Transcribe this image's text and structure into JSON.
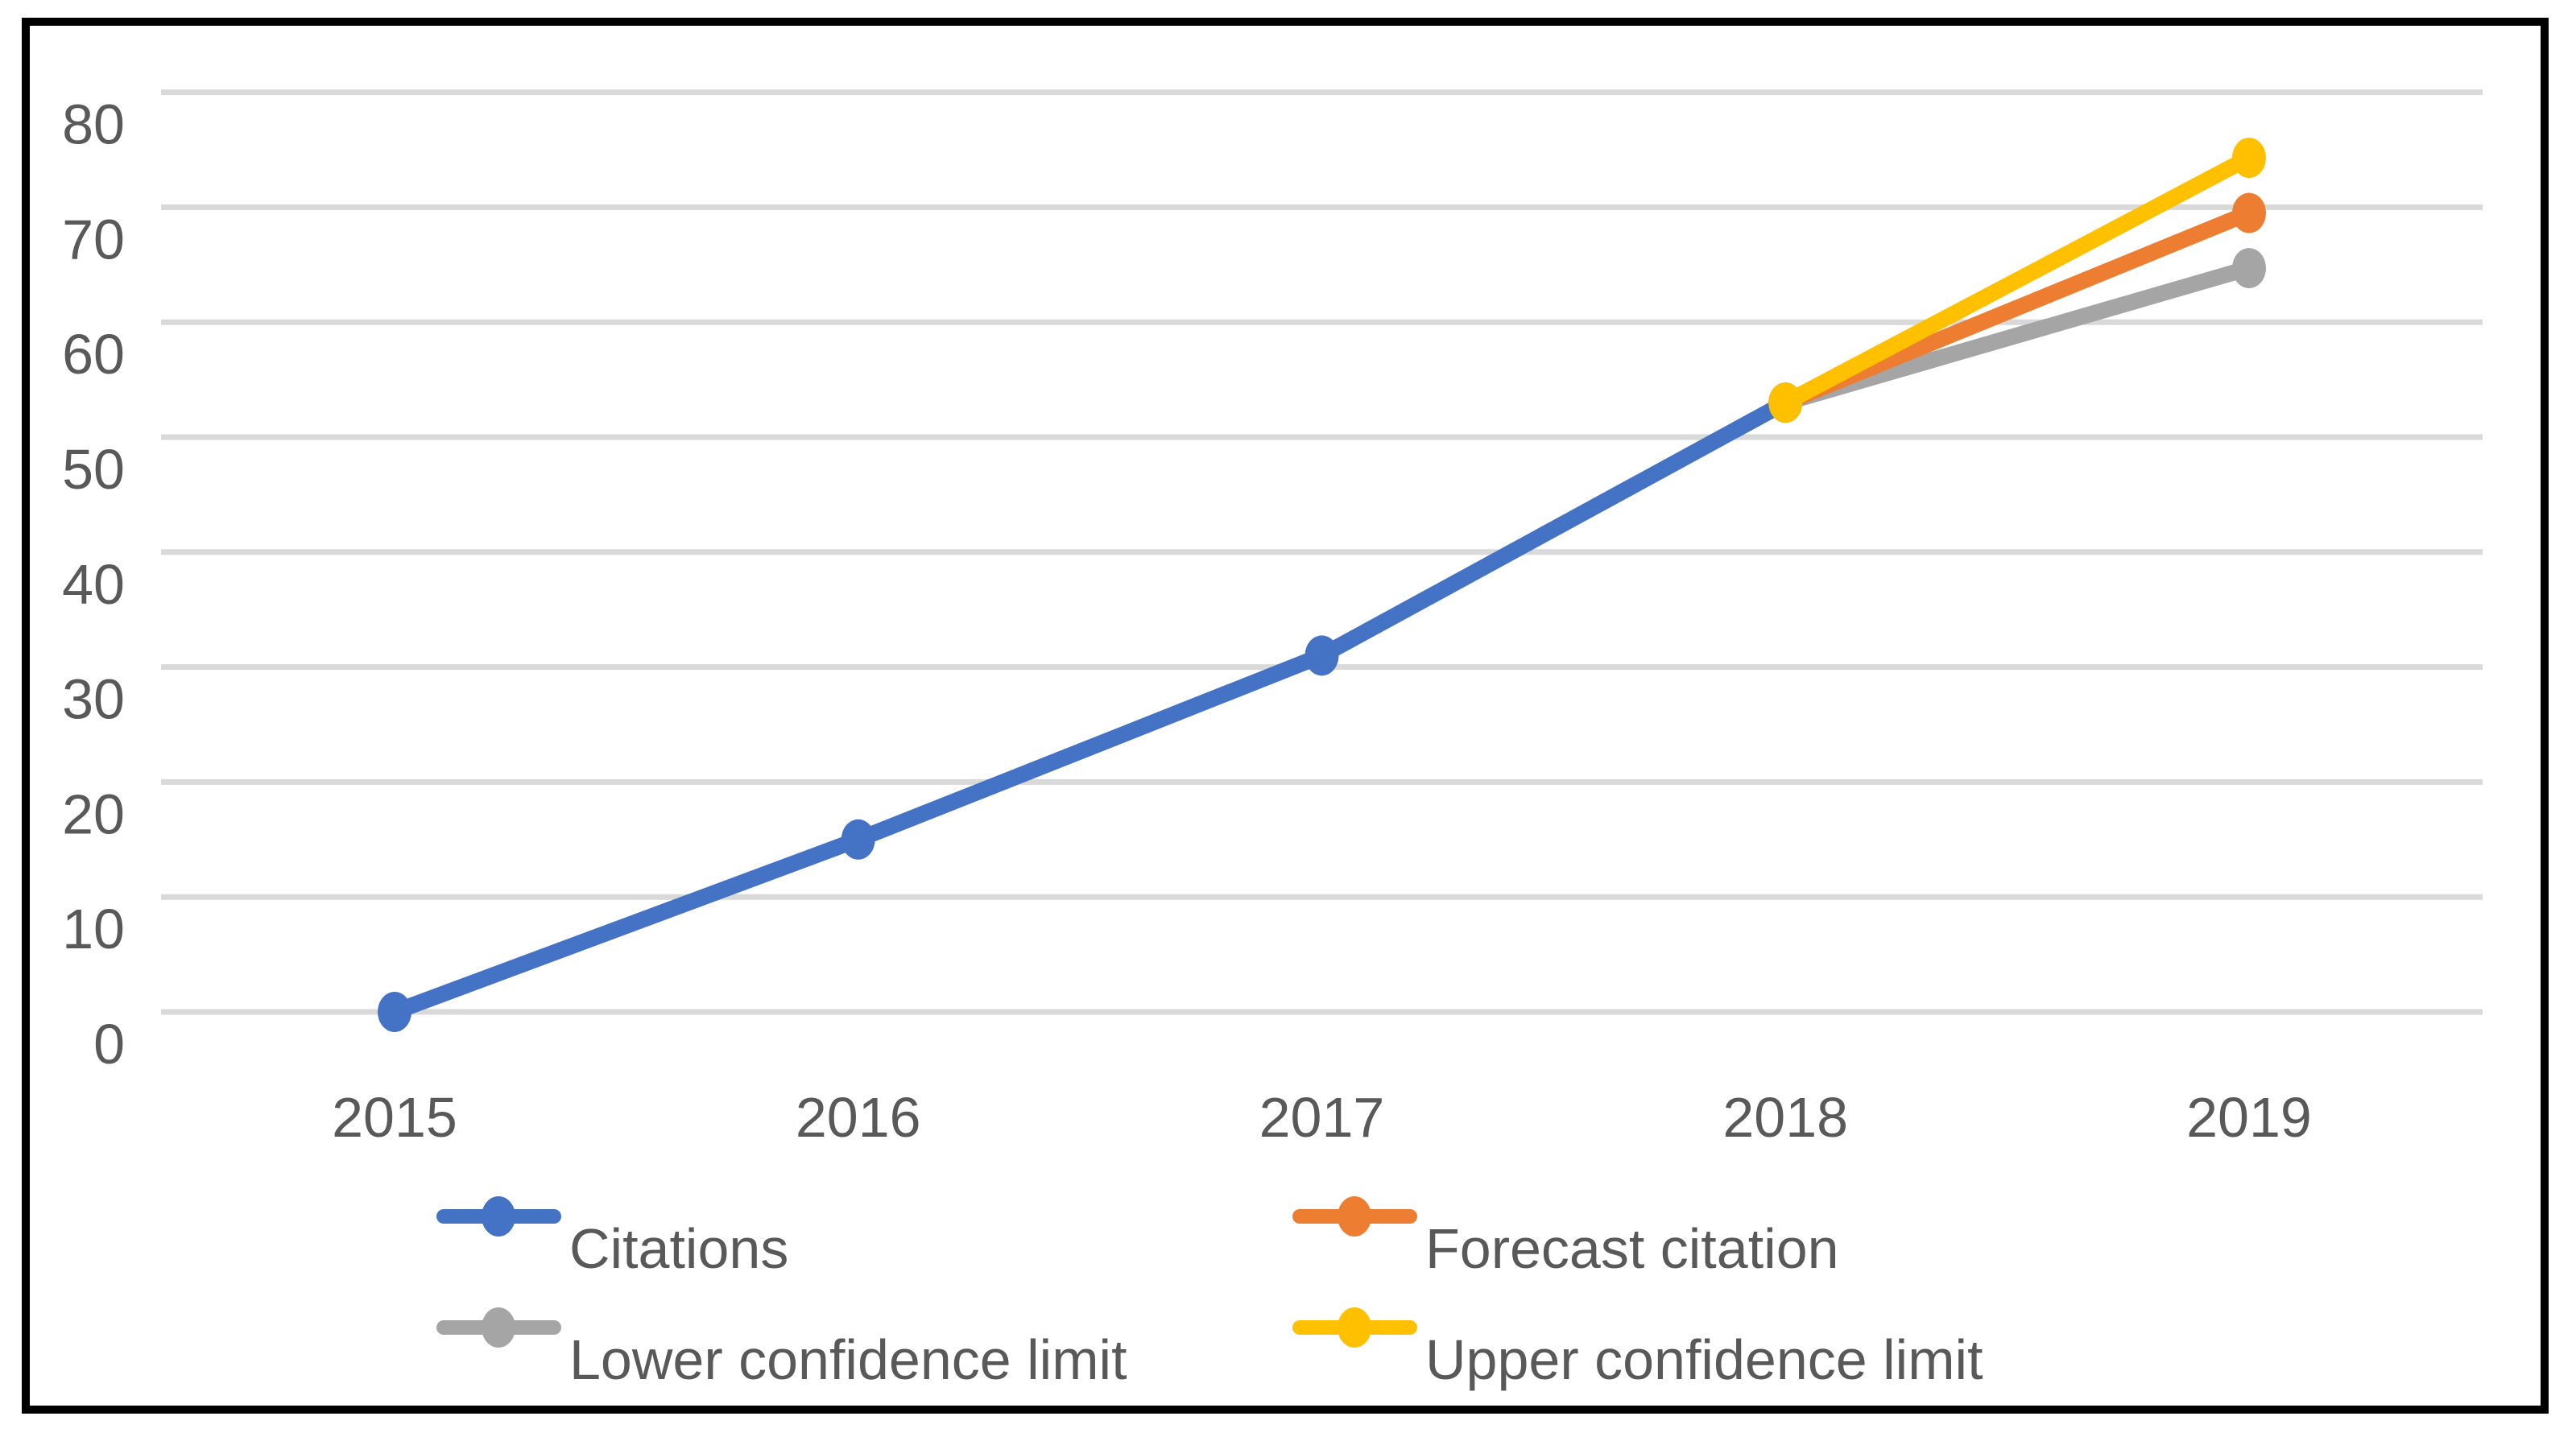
{
  "figure": {
    "background_color": "#ffffff",
    "frame_color": "#000000",
    "gridline_color": "#D9D9D9",
    "axis_text_color": "#595959"
  },
  "chart_data": {
    "type": "line",
    "title": "",
    "xlabel": "",
    "ylabel": "",
    "x_categories": [
      "2015",
      "2016",
      "2017",
      "2018",
      "2019"
    ],
    "y_ticks": [
      "0",
      "10",
      "20",
      "30",
      "40",
      "50",
      "60",
      "70",
      "80"
    ],
    "ylim": [
      0,
      80
    ],
    "grid": "horizontal",
    "legend_position": "bottom",
    "series": [
      {
        "name": "Citations",
        "color": "#4472C4",
        "x": [
          2015,
          2016,
          2017,
          2018
        ],
        "values": [
          0,
          15,
          31,
          53
        ]
      },
      {
        "name": "Forecast citation",
        "color": "#ED7D31",
        "x": [
          2018,
          2019
        ],
        "values": [
          53,
          69.5
        ]
      },
      {
        "name": "Lower confidence limit",
        "color": "#A5A5A5",
        "x": [
          2018,
          2019
        ],
        "values": [
          53,
          64.7
        ]
      },
      {
        "name": "Upper confidence limit",
        "color": "#FFC000",
        "x": [
          2018,
          2019
        ],
        "values": [
          53,
          74.3
        ]
      }
    ]
  }
}
